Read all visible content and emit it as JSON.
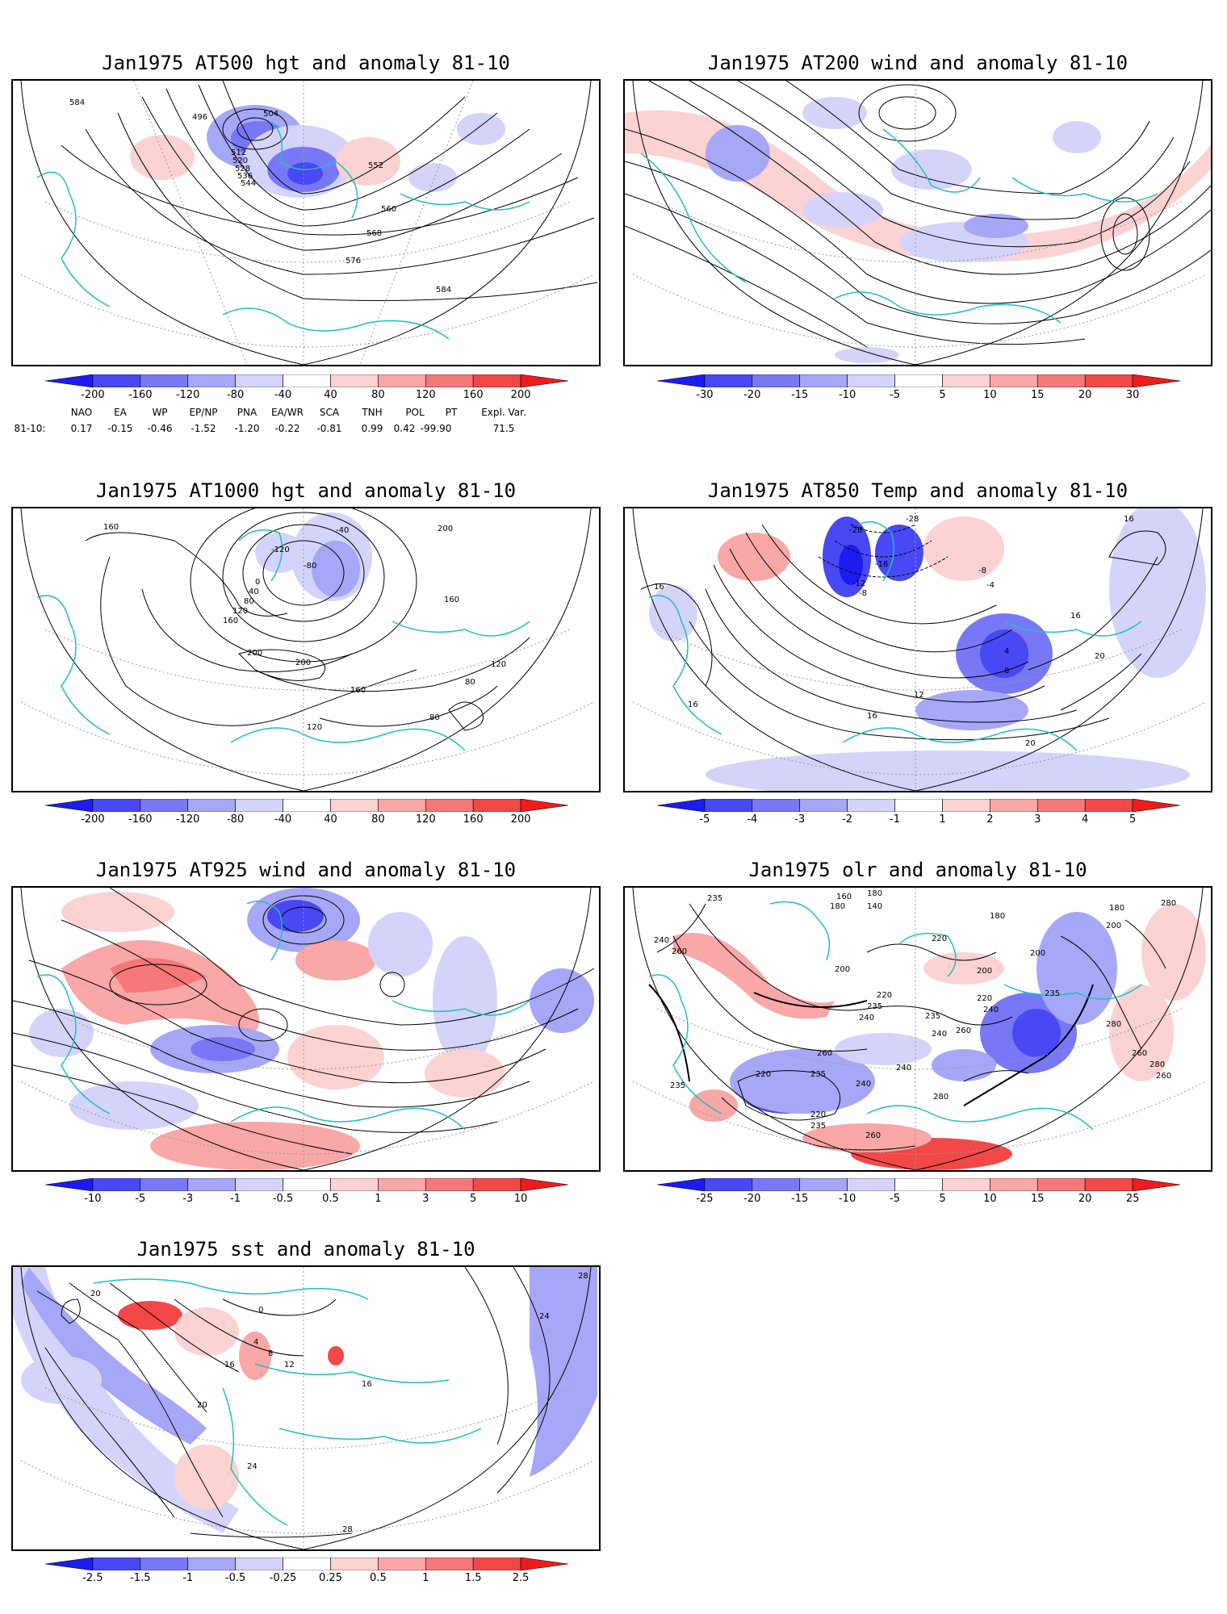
{
  "panels": [
    {
      "id": "p500",
      "title": "Jan1975 AT500 hgt and anomaly 81-10",
      "colorbar": {
        "labels": [
          "-200",
          "-160",
          "-120",
          "-80",
          "-40",
          "40",
          "80",
          "120",
          "160",
          "200"
        ],
        "colors": [
          "#1c1cf0",
          "#4848f5",
          "#7878f6",
          "#a7a7f8",
          "#d4d4fb",
          "#ffffff",
          "#fcd2d2",
          "#f9a7a7",
          "#f67878",
          "#f34848",
          "#f01c1c"
        ]
      },
      "contour_labels": [
        "584",
        "496",
        "504",
        "512",
        "520",
        "528",
        "536",
        "544",
        "552",
        "560",
        "568",
        "576",
        "584"
      ]
    },
    {
      "id": "p200",
      "title": "Jan1975 AT200 wind and anomaly 81-10",
      "colorbar": {
        "labels": [
          "-30",
          "-20",
          "-15",
          "-10",
          "-5",
          "5",
          "10",
          "15",
          "20",
          "30"
        ],
        "colors": [
          "#1c1cf0",
          "#4848f5",
          "#7878f6",
          "#a7a7f8",
          "#d4d4fb",
          "#ffffff",
          "#fcd2d2",
          "#f9a7a7",
          "#f67878",
          "#f34848",
          "#f01c1c"
        ]
      },
      "contour_labels": []
    },
    {
      "id": "p1000",
      "title": "Jan1975 AT1000 hgt and anomaly 81-10",
      "colorbar": {
        "labels": [
          "-200",
          "-160",
          "-120",
          "-80",
          "-40",
          "40",
          "80",
          "120",
          "160",
          "200"
        ],
        "colors": [
          "#1c1cf0",
          "#4848f5",
          "#7878f6",
          "#a7a7f8",
          "#d4d4fb",
          "#ffffff",
          "#fcd2d2",
          "#f9a7a7",
          "#f67878",
          "#f34848",
          "#f01c1c"
        ]
      },
      "contour_labels": [
        "160",
        "-40",
        "-120",
        "-80",
        "0",
        "40",
        "80",
        "120",
        "160",
        "200",
        "200",
        "200",
        "160",
        "120",
        "80",
        "80",
        "160",
        "120"
      ]
    },
    {
      "id": "p850",
      "title": "Jan1975 AT850 Temp and anomaly 81-10",
      "colorbar": {
        "labels": [
          "-5",
          "-4",
          "-3",
          "-2",
          "-1",
          "1",
          "2",
          "3",
          "4",
          "5"
        ],
        "colors": [
          "#1c1cf0",
          "#4848f5",
          "#7878f6",
          "#a7a7f8",
          "#d4d4fb",
          "#ffffff",
          "#fcd2d2",
          "#f9a7a7",
          "#f67878",
          "#f34848",
          "#f01c1c"
        ]
      },
      "contour_labels": [
        "-28",
        "-28",
        "-16",
        "-12",
        "-8",
        "-8",
        "-4",
        "16",
        "16",
        "16",
        "4",
        "8",
        "12",
        "16",
        "20",
        "20",
        "16"
      ]
    },
    {
      "id": "p925",
      "title": "Jan1975 AT925 wind and anomaly 81-10",
      "colorbar": {
        "labels": [
          "-10",
          "-5",
          "-3",
          "-1",
          "-0.5",
          "0.5",
          "1",
          "3",
          "5",
          "10"
        ],
        "colors": [
          "#1c1cf0",
          "#4848f5",
          "#7878f6",
          "#a7a7f8",
          "#d4d4fb",
          "#ffffff",
          "#fcd2d2",
          "#f9a7a7",
          "#f67878",
          "#f34848",
          "#f01c1c"
        ]
      },
      "contour_labels": []
    },
    {
      "id": "polr",
      "title": "Jan1975 olr and anomaly 81-10",
      "colorbar": {
        "labels": [
          "-25",
          "-20",
          "-15",
          "-10",
          "-5",
          "5",
          "10",
          "15",
          "20",
          "25"
        ],
        "colors": [
          "#1c1cf0",
          "#4848f5",
          "#7878f6",
          "#a7a7f8",
          "#d4d4fb",
          "#ffffff",
          "#fcd2d2",
          "#f9a7a7",
          "#f67878",
          "#f34848",
          "#f01c1c"
        ]
      },
      "contour_labels": [
        "235",
        "180",
        "160",
        "180",
        "140",
        "180",
        "280",
        "240",
        "260",
        "180",
        "200",
        "200",
        "220",
        "200",
        "200",
        "220",
        "235",
        "240",
        "235",
        "220",
        "240",
        "235",
        "260",
        "280",
        "240",
        "240",
        "260",
        "260",
        "280",
        "235",
        "220",
        "240",
        "235",
        "220",
        "235",
        "260",
        "280",
        "260"
      ]
    },
    {
      "id": "psst",
      "title": "Jan1975 sst and anomaly 81-10",
      "colorbar": {
        "labels": [
          "-2.5",
          "-1.5",
          "-1",
          "-0.5",
          "-0.25",
          "0.25",
          "0.5",
          "1",
          "1.5",
          "2.5"
        ],
        "colors": [
          "#1c1cf0",
          "#4848f5",
          "#7878f6",
          "#a7a7f8",
          "#d4d4fb",
          "#ffffff",
          "#fcd2d2",
          "#f9a7a7",
          "#f67878",
          "#f34848",
          "#f01c1c"
        ]
      },
      "contour_labels": [
        "20",
        "28",
        "0",
        "4",
        "8",
        "12",
        "16",
        "16",
        "20",
        "24",
        "24",
        "28"
      ]
    }
  ],
  "teleconnections": {
    "header_labels": [
      "NAO",
      "EA",
      "WP",
      "EP/NP",
      "PNA",
      "EA/WR",
      "SCA",
      "TNH",
      "POL",
      "PT",
      "Expl. Var."
    ],
    "row_label": "81-10:",
    "values": [
      "0.17",
      "-0.15",
      "-0.46",
      "-1.52",
      "-1.20",
      "-0.22",
      "-0.81",
      "0.99",
      "0.42",
      "-99.90",
      "71.5"
    ]
  }
}
